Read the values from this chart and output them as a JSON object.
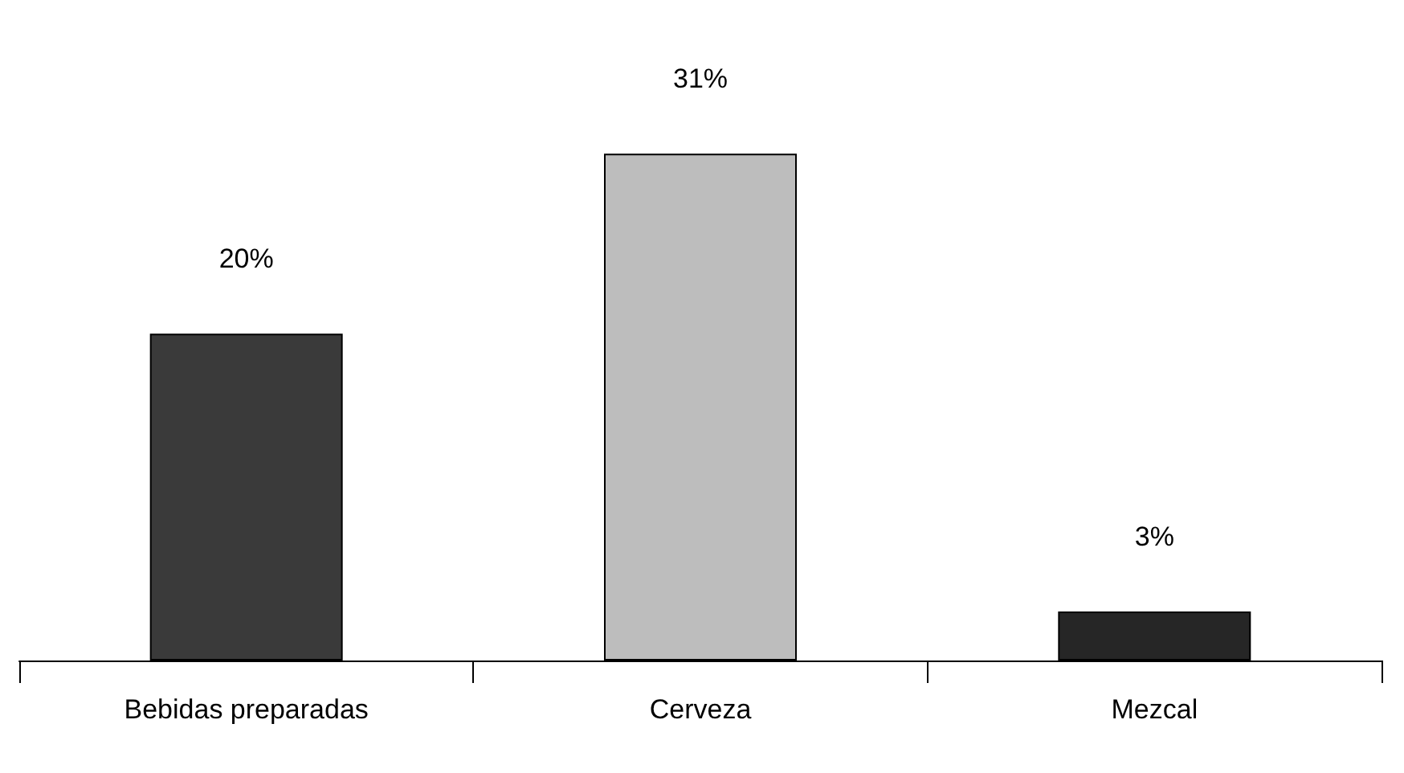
{
  "chart_data": {
    "type": "bar",
    "categories": [
      "Bebidas preparadas",
      "Cerveza",
      "Mezcal"
    ],
    "values": [
      20,
      31,
      3
    ],
    "colors": [
      "#3a3a3a",
      "#bdbdbd",
      "#262626"
    ],
    "value_labels": [
      "20%",
      "31%",
      "3%"
    ],
    "grid": false
  }
}
